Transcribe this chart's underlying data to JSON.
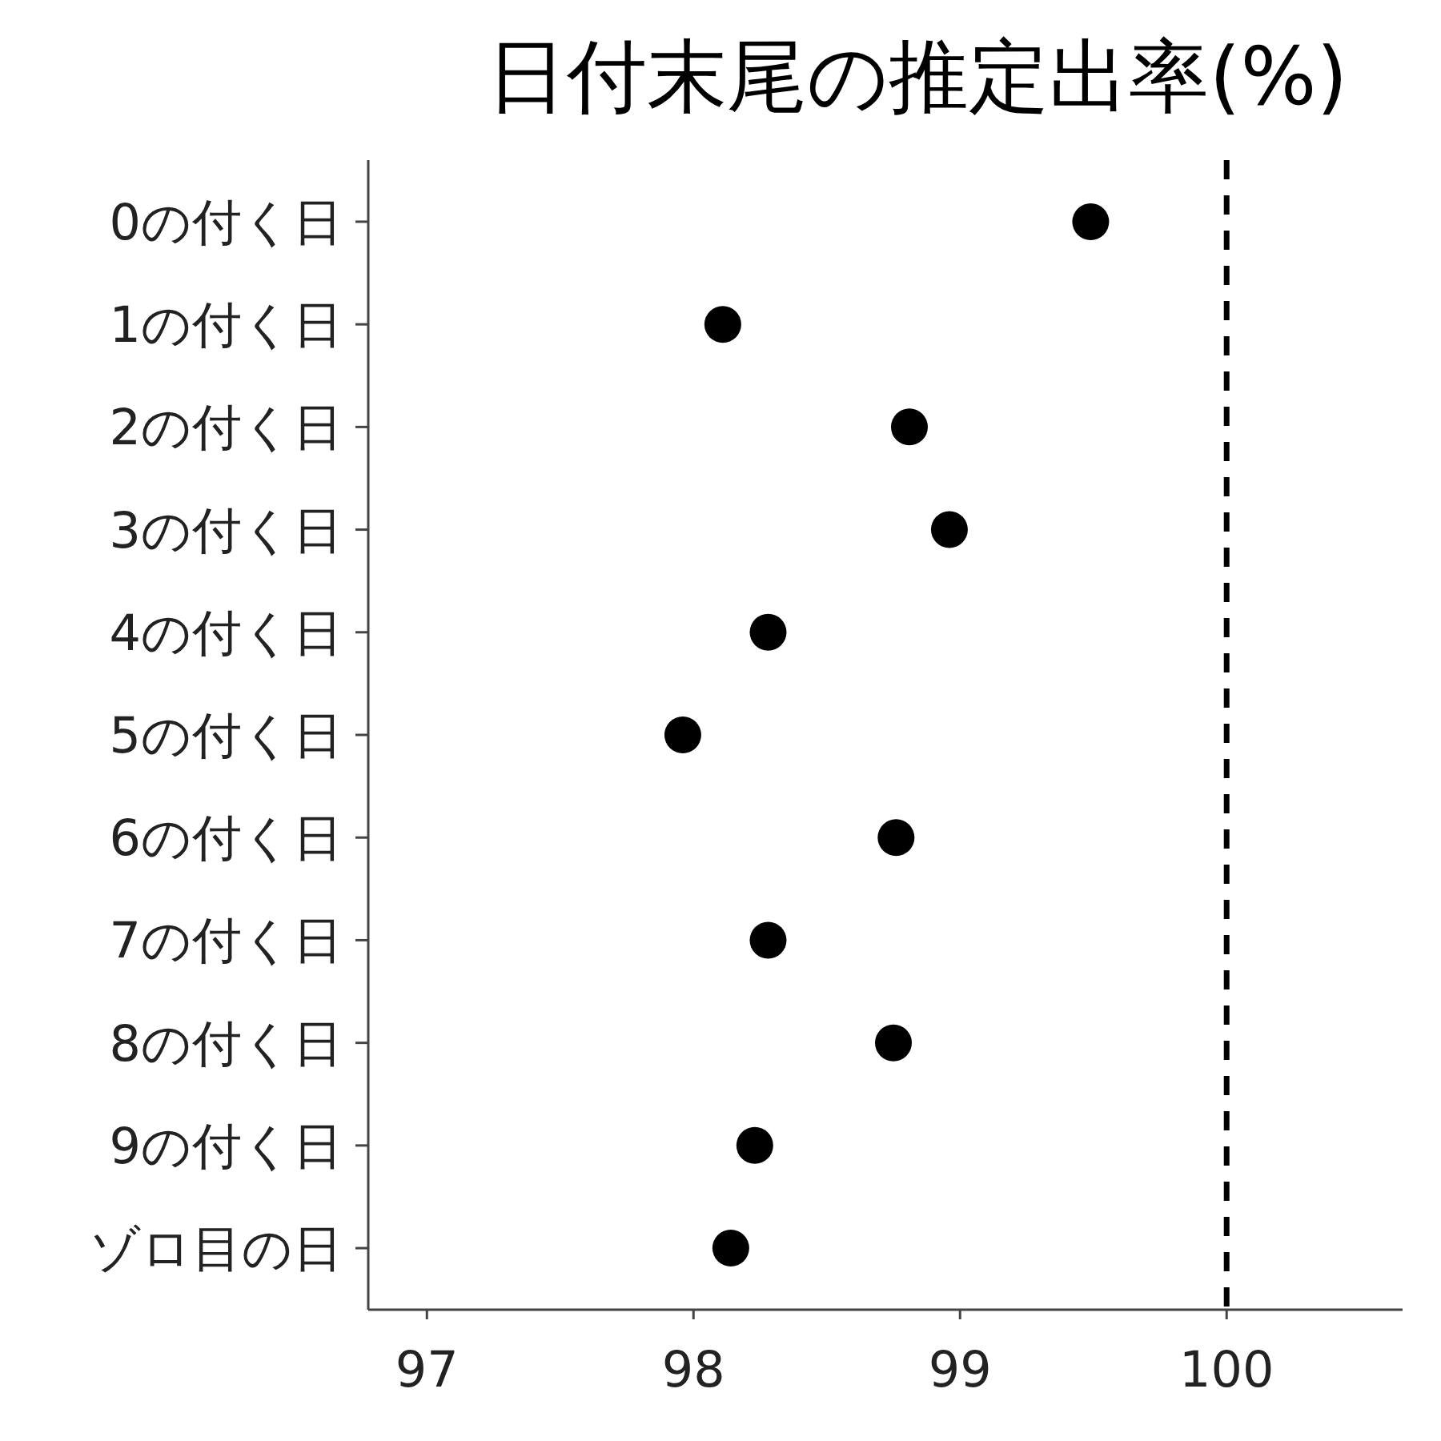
{
  "chart_data": {
    "type": "scatter",
    "title": "日付末尾の推定出率(%)",
    "orientation": "horizontal",
    "categories": [
      "0の付く日",
      "1の付く日",
      "2の付く日",
      "3の付く日",
      "4の付く日",
      "5の付く日",
      "6の付く日",
      "7の付く日",
      "8の付く日",
      "9の付く日",
      "ゾロ目の日"
    ],
    "series": [
      {
        "color": "#000000",
        "values": [
          99.49,
          98.11,
          98.81,
          98.96,
          98.28,
          97.96,
          98.76,
          98.28,
          98.75,
          98.23,
          98.14
        ]
      }
    ],
    "xlim": [
      96.78,
      100.66
    ],
    "xticks": [
      97,
      98,
      99,
      100
    ],
    "marker": "circle",
    "grid": false,
    "ref_lines": [
      {
        "axis": "x",
        "value": 100,
        "color": "#000000",
        "line_style": "dashed"
      }
    ]
  }
}
